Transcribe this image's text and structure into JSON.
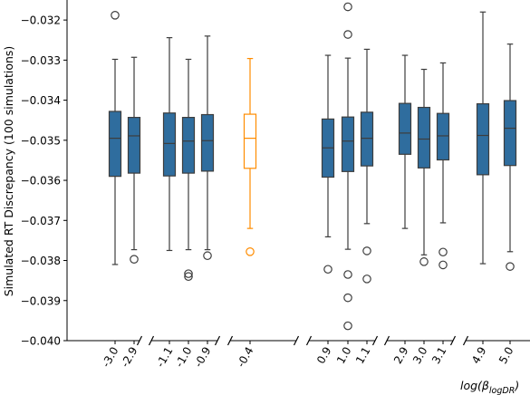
{
  "chart_data": {
    "type": "boxplot",
    "ylabel": "Simulated RT Discrepancy (100 simulations)",
    "xlabel_base": "log(β",
    "xlabel_sub": "logDR",
    "xlabel_tail": ")",
    "ylim": [
      -0.04,
      -0.0315
    ],
    "yticks": [
      -0.032,
      -0.033,
      -0.034,
      -0.035,
      -0.036,
      -0.037,
      -0.038,
      -0.039,
      -0.04
    ],
    "ytick_labels": [
      "−0.032",
      "−0.033",
      "−0.034",
      "−0.035",
      "−0.036",
      "−0.037",
      "−0.038",
      "−0.039",
      "−0.040"
    ],
    "colors": {
      "default": "#2f6d9e",
      "highlight": "#ff8c00",
      "edge": "#3d3d3d"
    },
    "axis_break": "//",
    "boxes": [
      {
        "label": "-3.0",
        "q1": -0.0359,
        "median": -0.03495,
        "q3": -0.03428,
        "whislo": -0.0381,
        "whishi": -0.03298,
        "fliers": [
          -0.03188
        ],
        "highlight": false
      },
      {
        "label": "-2.9",
        "q1": -0.03582,
        "median": -0.03489,
        "q3": -0.03443,
        "whislo": -0.03773,
        "whishi": -0.03293,
        "fliers": [
          -0.03797
        ],
        "highlight": false
      },
      {
        "label": "-1.1",
        "q1": -0.03589,
        "median": -0.03508,
        "q3": -0.03432,
        "whislo": -0.03775,
        "whishi": -0.03244,
        "fliers": [],
        "highlight": false
      },
      {
        "label": "-1.0",
        "q1": -0.03582,
        "median": -0.03502,
        "q3": -0.03443,
        "whislo": -0.03773,
        "whishi": -0.03298,
        "fliers": [
          -0.03833,
          -0.0384
        ],
        "highlight": false
      },
      {
        "label": "-0.9",
        "q1": -0.03577,
        "median": -0.03501,
        "q3": -0.03436,
        "whislo": -0.03773,
        "whishi": -0.0324,
        "fliers": [
          -0.03788
        ],
        "highlight": false
      },
      {
        "label": "-0.4",
        "q1": -0.0357,
        "median": -0.03495,
        "q3": -0.03435,
        "whislo": -0.0372,
        "whishi": -0.03296,
        "fliers": [
          -0.03778
        ],
        "highlight": true
      },
      {
        "label": "0.9",
        "q1": -0.03592,
        "median": -0.03519,
        "q3": -0.03447,
        "whislo": -0.03741,
        "whishi": -0.03288,
        "fliers": [
          -0.03822
        ],
        "highlight": false
      },
      {
        "label": "1.0",
        "q1": -0.03578,
        "median": -0.03502,
        "q3": -0.03442,
        "whislo": -0.03772,
        "whishi": -0.03295,
        "fliers": [
          -0.03167,
          -0.03236,
          -0.03835,
          -0.03893,
          -0.03963
        ],
        "highlight": false
      },
      {
        "label": "1.1",
        "q1": -0.03564,
        "median": -0.03495,
        "q3": -0.0343,
        "whislo": -0.03708,
        "whishi": -0.03273,
        "fliers": [
          -0.03776,
          -0.03846
        ],
        "highlight": false
      },
      {
        "label": "2.9",
        "q1": -0.03535,
        "median": -0.03482,
        "q3": -0.03408,
        "whislo": -0.0372,
        "whishi": -0.03288,
        "fliers": [],
        "highlight": false
      },
      {
        "label": "3.0",
        "q1": -0.03569,
        "median": -0.03497,
        "q3": -0.03418,
        "whislo": -0.03786,
        "whishi": -0.03323,
        "fliers": [
          -0.03803
        ],
        "highlight": false
      },
      {
        "label": "3.1",
        "q1": -0.03549,
        "median": -0.03489,
        "q3": -0.03433,
        "whislo": -0.03706,
        "whishi": -0.03307,
        "fliers": [
          -0.03779,
          -0.03811
        ],
        "highlight": false
      },
      {
        "label": "4.9",
        "q1": -0.03586,
        "median": -0.03488,
        "q3": -0.03409,
        "whislo": -0.03808,
        "whishi": -0.0318,
        "fliers": [],
        "highlight": false
      },
      {
        "label": "5.0",
        "q1": -0.03563,
        "median": -0.0347,
        "q3": -0.03401,
        "whislo": -0.03778,
        "whishi": -0.0326,
        "fliers": [
          -0.03815
        ],
        "highlight": false
      }
    ]
  }
}
